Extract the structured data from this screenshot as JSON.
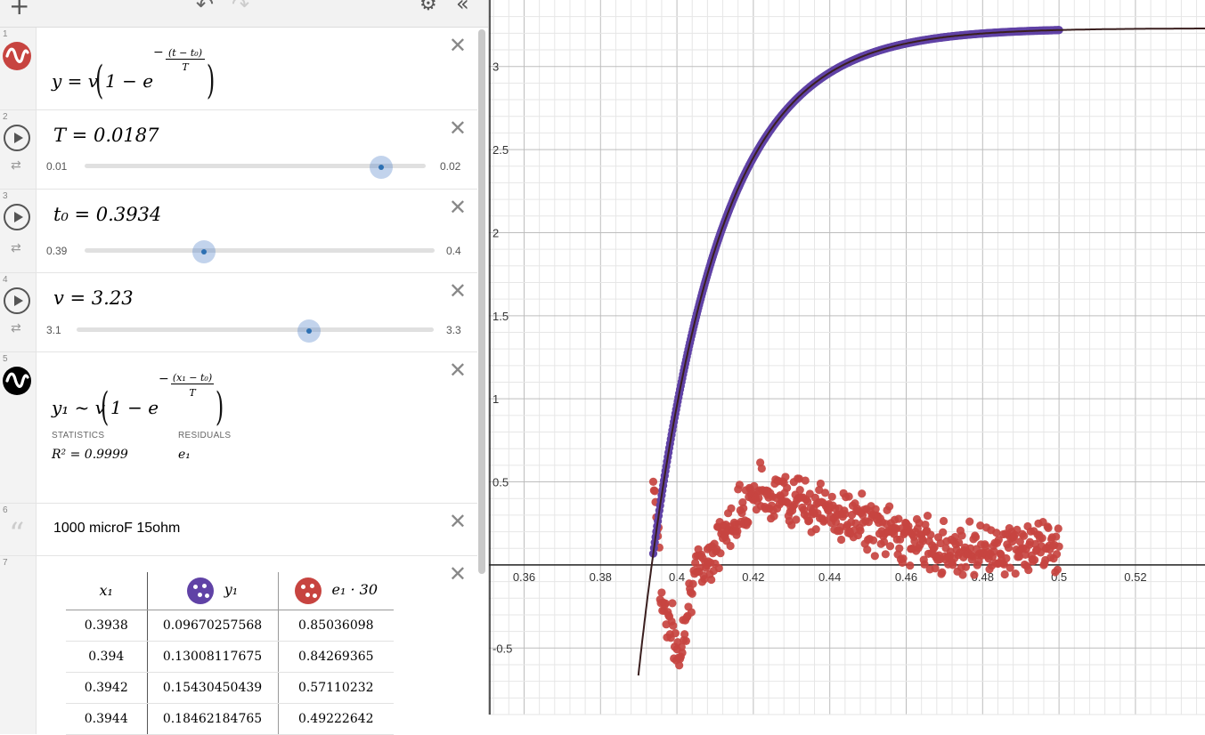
{
  "toolbar": {
    "add_icon": "plus-icon",
    "undo_icon": "undo-icon",
    "redo_icon": "redo-icon",
    "settings_icon": "gear-icon",
    "collapse_icon": "double-chevron-left-icon"
  },
  "expressions": [
    {
      "index": "1",
      "type": "equation",
      "color": "#c74440",
      "lhs": "y = v",
      "inner": "1 − e",
      "exp_num": "(t − t₀)",
      "exp_den": "T"
    },
    {
      "index": "2",
      "type": "slider",
      "text": "T = 0.0187",
      "min": "0.01",
      "max": "0.02",
      "value": 0.0187,
      "min_val": 0.01,
      "max_val": 0.02
    },
    {
      "index": "3",
      "type": "slider",
      "text": "t₀ = 0.3934",
      "min": "0.39",
      "max": "0.4",
      "value": 0.3934,
      "min_val": 0.39,
      "max_val": 0.4
    },
    {
      "index": "4",
      "type": "slider",
      "text": "v = 3.23",
      "min": "3.1",
      "max": "3.3",
      "value": 3.23,
      "min_val": 3.1,
      "max_val": 3.3
    },
    {
      "index": "5",
      "type": "regression",
      "color": "#000000",
      "lhs": "y₁ ~ v",
      "inner": "1 − e",
      "exp_num": "(x₁ − t₀)",
      "exp_den": "T",
      "statistics_label": "STATISTICS",
      "residuals_label": "RESIDUALS",
      "r2": "R² = 0.9999",
      "residual_var": "e₁"
    },
    {
      "index": "6",
      "type": "note",
      "text": "1000 microF 15ohm"
    },
    {
      "index": "7",
      "type": "table"
    }
  ],
  "table": {
    "headers": [
      "x₁",
      "y₁",
      "e₁ · 30"
    ],
    "col2_color": "#6042a6",
    "col3_color": "#c74440",
    "rows": [
      [
        "0.3938",
        "0.09670257568",
        "0.85036098"
      ],
      [
        "0.394",
        "0.13008117675",
        "0.84269365"
      ],
      [
        "0.3942",
        "0.15430450439",
        "0.57110232"
      ],
      [
        "0.3944",
        "0.18462184765",
        "0.49222642"
      ]
    ]
  },
  "chart_data": {
    "type": "scatter",
    "x_range": [
      0.3508,
      0.5382
    ],
    "y_range": [
      -0.9,
      3.4
    ],
    "x_ticks": [
      "0.36",
      "0.38",
      "0.4",
      "0.42",
      "0.44",
      "0.46",
      "0.48",
      "0.5",
      "0.52"
    ],
    "y_ticks": [
      "-0.5",
      "0.5",
      "1",
      "1.5",
      "2",
      "2.5",
      "3"
    ],
    "grid": true,
    "curve": {
      "color": "#3a1f1f",
      "v": 3.23,
      "t0": 0.3934,
      "T": 0.0187
    },
    "series": [
      {
        "color": "#6042a6",
        "x_start": 0.3938,
        "x_end": 0.5,
        "x_step": 0.0002
      },
      {
        "color": "#c74440",
        "x_start": 0.3938,
        "x_end": 0.5,
        "x_step": 0.0002
      }
    ]
  }
}
